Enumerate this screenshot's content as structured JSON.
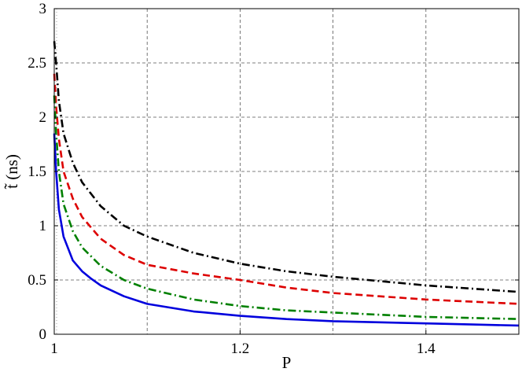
{
  "chart_data": {
    "type": "line",
    "title": "",
    "xlabel": "P",
    "ylabel": "t̃ (ns)",
    "xlim": [
      1.0,
      1.5
    ],
    "ylim": [
      0,
      3
    ],
    "grid": true,
    "grid_style": "dashed",
    "legend": "none",
    "x_ticks": [
      1,
      1.2,
      1.4
    ],
    "x_tick_labels": [
      "1",
      "1.2",
      "1.4"
    ],
    "x_grid_lines": [
      1.1,
      1.2,
      1.3,
      1.4
    ],
    "y_ticks": [
      0,
      0.5,
      1,
      1.5,
      2,
      2.5,
      3
    ],
    "y_tick_labels": [
      "0",
      "0.5",
      "1",
      "1.5",
      "2",
      "2.5",
      "3"
    ],
    "series": [
      {
        "color": "#000000",
        "style": "dashdot",
        "x": [
          1.0,
          1.002,
          1.005,
          1.01,
          1.02,
          1.03,
          1.05,
          1.075,
          1.1,
          1.15,
          1.2,
          1.25,
          1.3,
          1.35,
          1.4,
          1.45,
          1.5
        ],
        "y": [
          2.7,
          2.5,
          2.15,
          1.85,
          1.58,
          1.4,
          1.18,
          1.0,
          0.9,
          0.75,
          0.65,
          0.58,
          0.53,
          0.49,
          0.45,
          0.42,
          0.39
        ]
      },
      {
        "color": "#dd0000",
        "style": "dashed",
        "x": [
          1.0,
          1.002,
          1.005,
          1.01,
          1.02,
          1.03,
          1.05,
          1.075,
          1.1,
          1.15,
          1.2,
          1.25,
          1.3,
          1.35,
          1.4,
          1.45,
          1.5
        ],
        "y": [
          2.4,
          2.1,
          1.8,
          1.5,
          1.25,
          1.08,
          0.88,
          0.73,
          0.64,
          0.56,
          0.5,
          0.43,
          0.38,
          0.35,
          0.32,
          0.3,
          0.28
        ]
      },
      {
        "color": "#008000",
        "style": "dashdot",
        "x": [
          1.0,
          1.002,
          1.005,
          1.01,
          1.02,
          1.03,
          1.05,
          1.075,
          1.1,
          1.15,
          1.2,
          1.25,
          1.3,
          1.35,
          1.4,
          1.45,
          1.5
        ],
        "y": [
          2.2,
          1.85,
          1.5,
          1.2,
          0.95,
          0.8,
          0.63,
          0.5,
          0.42,
          0.32,
          0.26,
          0.22,
          0.2,
          0.18,
          0.16,
          0.15,
          0.14
        ]
      },
      {
        "color": "#0000dd",
        "style": "solid",
        "x": [
          1.0,
          1.002,
          1.005,
          1.01,
          1.02,
          1.03,
          1.04,
          1.05,
          1.075,
          1.1,
          1.15,
          1.2,
          1.25,
          1.3,
          1.35,
          1.4,
          1.45,
          1.5
        ],
        "y": [
          1.85,
          1.5,
          1.15,
          0.9,
          0.68,
          0.58,
          0.51,
          0.45,
          0.35,
          0.28,
          0.21,
          0.17,
          0.14,
          0.12,
          0.11,
          0.1,
          0.09,
          0.08
        ]
      }
    ]
  }
}
